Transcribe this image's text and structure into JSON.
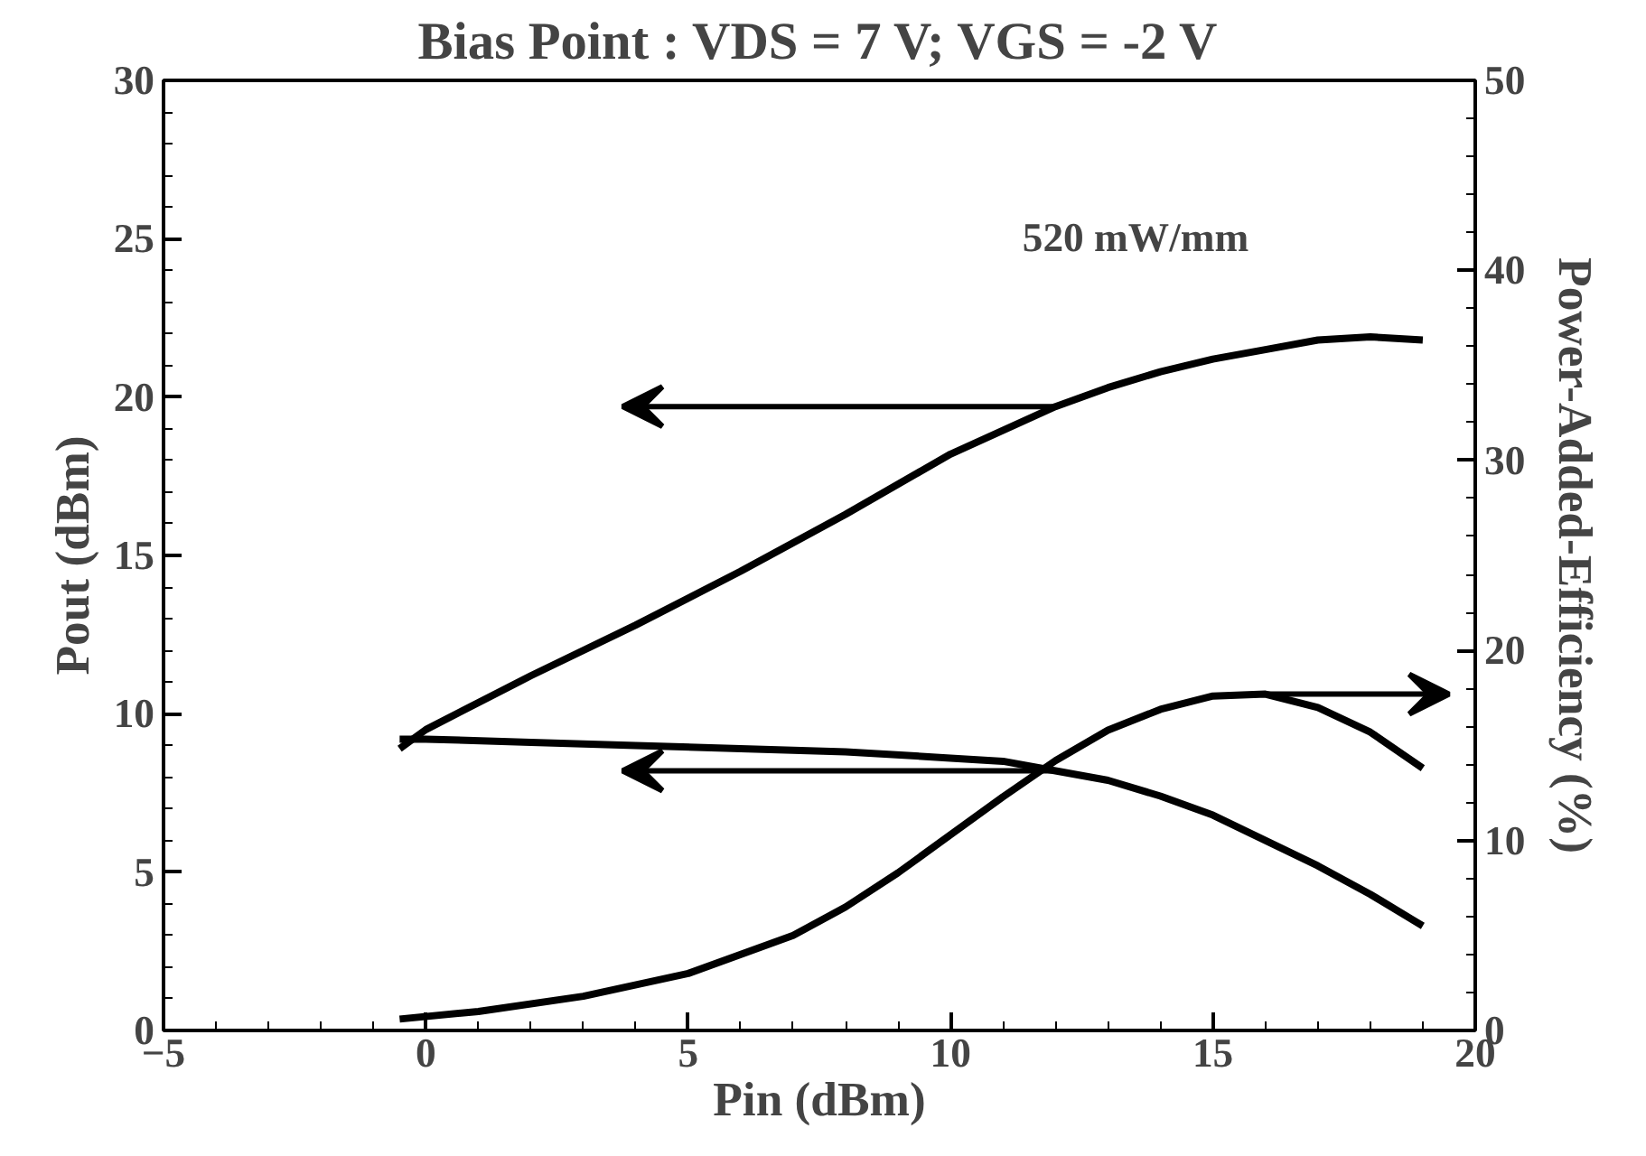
{
  "chart_data": {
    "type": "line",
    "title": "Bias Point : VDS = 7 V; VGS = -2 V",
    "xlabel": "Pin (dBm)",
    "ylabel": "Pout (dBm)",
    "y2label": "Power-Added-Efficiency (%)",
    "xlim": [
      -5,
      20
    ],
    "xticks": [
      -5,
      0,
      5,
      10,
      15,
      20
    ],
    "ylim": [
      0,
      30
    ],
    "yticks": [
      0,
      5,
      10,
      15,
      20,
      25,
      30
    ],
    "y2lim": [
      0,
      50
    ],
    "y2ticks": [
      0,
      10,
      20,
      30,
      40,
      50
    ],
    "grid": false,
    "marker": "none",
    "line_style": "solid",
    "annotations": [
      "520 mW/mm"
    ],
    "series": [
      {
        "color": "#000000",
        "x": [
          -0.5,
          0,
          2,
          4,
          6,
          8,
          10,
          12,
          13,
          14,
          15,
          16,
          17,
          18,
          19
        ],
        "values": [
          8.9,
          9.5,
          11.2,
          12.8,
          14.5,
          16.3,
          18.2,
          19.7,
          20.3,
          20.8,
          21.2,
          21.5,
          21.8,
          21.9,
          21.8
        ]
      },
      {
        "color": "#000000",
        "x": [
          -0.5,
          0,
          2,
          4,
          6,
          8,
          10,
          11,
          12,
          13,
          14,
          15,
          16,
          17,
          18,
          19
        ],
        "values": [
          9.2,
          9.2,
          9.1,
          9.0,
          8.9,
          8.8,
          8.6,
          8.5,
          8.2,
          7.9,
          7.4,
          6.8,
          6.0,
          5.2,
          4.3,
          3.3
        ]
      },
      {
        "color": "#000000",
        "axis": "y2",
        "x": [
          -0.5,
          1,
          3,
          5,
          7,
          8,
          9,
          10,
          11,
          12,
          13,
          14,
          15,
          16,
          17,
          18,
          19
        ],
        "values": [
          0.6,
          1.0,
          1.8,
          3.0,
          5.0,
          6.5,
          8.3,
          10.3,
          12.3,
          14.2,
          15.8,
          16.9,
          17.6,
          17.7,
          17.0,
          15.7,
          13.8
        ]
      }
    ]
  }
}
